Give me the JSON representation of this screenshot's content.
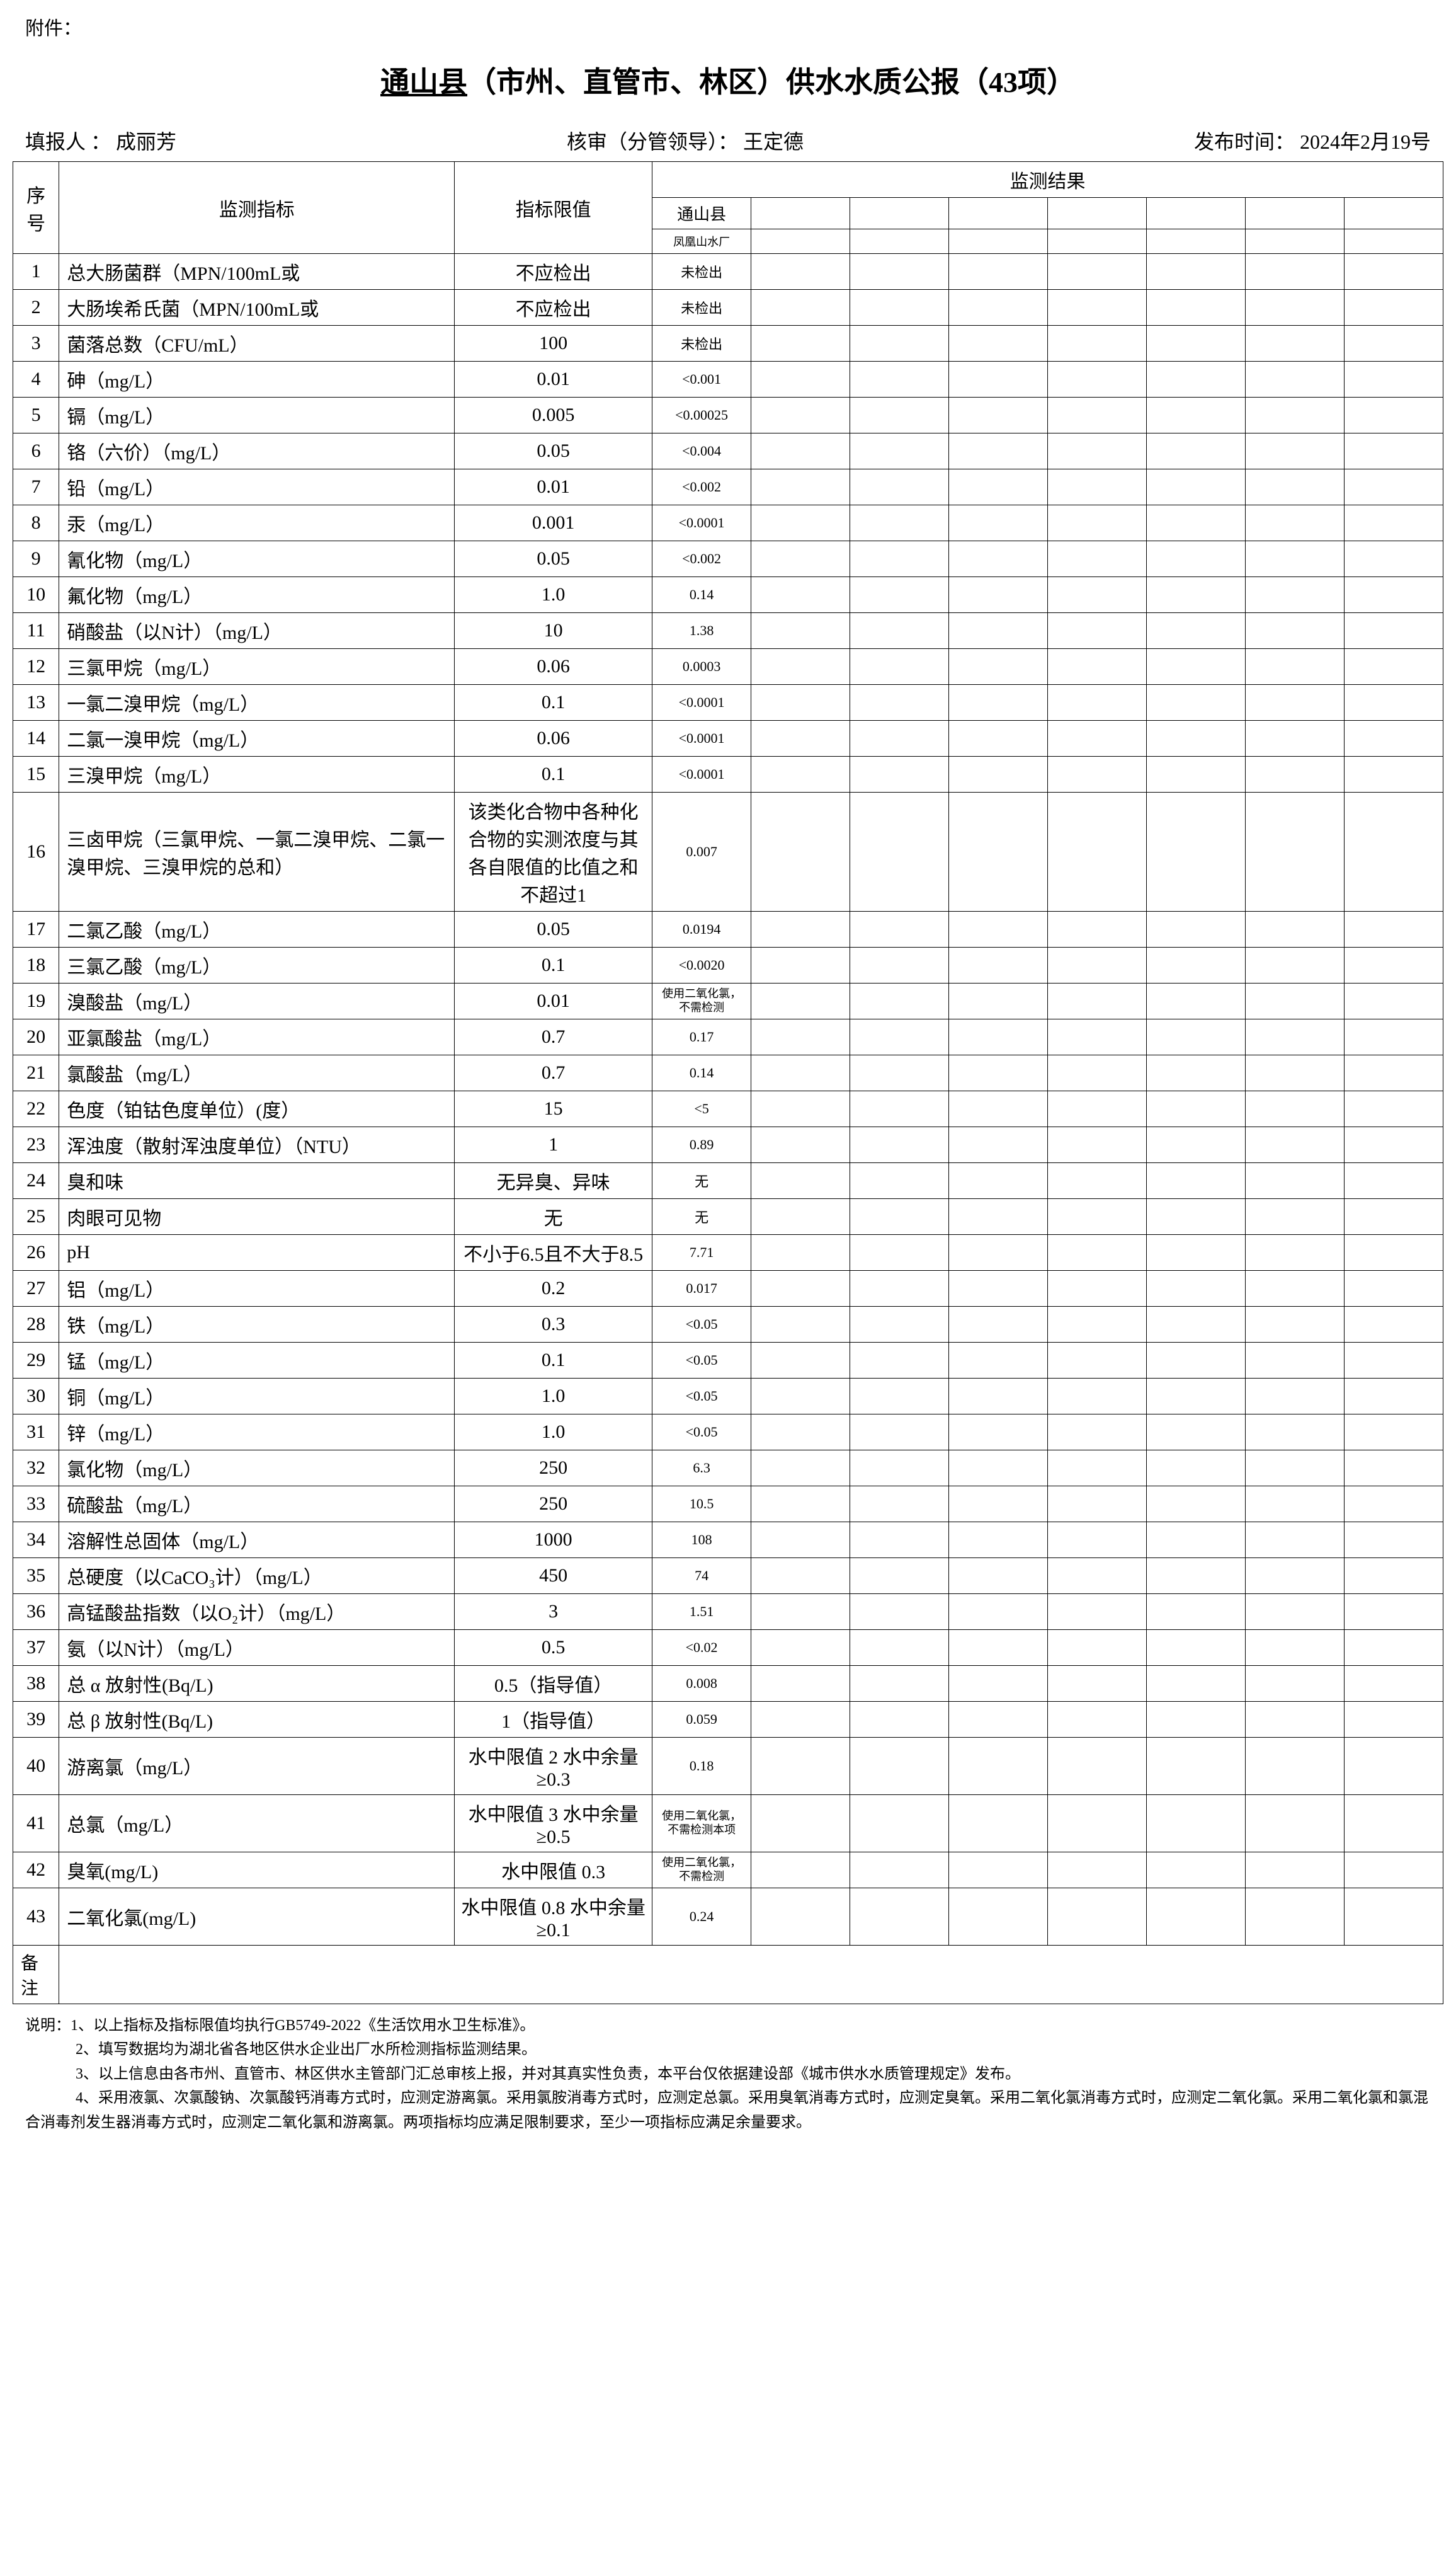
{
  "attachment": "附件：",
  "title": {
    "underlined": "通山县",
    "rest": "（市州、直管市、林区）供水水质公报（43项）"
  },
  "meta": {
    "reporter_label": "填报人 ：",
    "reporter": "成丽芳",
    "auditor_label": "核审（分管领导）：",
    "auditor": "王定德",
    "publish_label": "发布时间：",
    "publish": "2024年2月19号"
  },
  "headers": {
    "seq": "序号",
    "indicator": "监测指标",
    "limit": "指标限值",
    "result": "监测结果",
    "location": "通山县",
    "factory": "凤凰山水厂"
  },
  "rows": [
    {
      "seq": "1",
      "indicator": "总大肠菌群（MPN/100mL或",
      "limit": "不应检出",
      "result": "未检出"
    },
    {
      "seq": "2",
      "indicator": "大肠埃希氏菌（MPN/100mL或",
      "limit": "不应检出",
      "result": "未检出"
    },
    {
      "seq": "3",
      "indicator": "菌落总数（CFU/mL）",
      "limit": "100",
      "result": "未检出"
    },
    {
      "seq": "4",
      "indicator": "砷（mg/L）",
      "limit": "0.01",
      "result": "<0.001"
    },
    {
      "seq": "5",
      "indicator": "镉（mg/L）",
      "limit": "0.005",
      "result": "<0.00025"
    },
    {
      "seq": "6",
      "indicator": "铬（六价）（mg/L）",
      "limit": "0.05",
      "result": "<0.004"
    },
    {
      "seq": "7",
      "indicator": "铅（mg/L）",
      "limit": "0.01",
      "result": "<0.002"
    },
    {
      "seq": "8",
      "indicator": "汞（mg/L）",
      "limit": "0.001",
      "result": "<0.0001"
    },
    {
      "seq": "9",
      "indicator": "氰化物（mg/L）",
      "limit": "0.05",
      "result": "<0.002"
    },
    {
      "seq": "10",
      "indicator": "氟化物（mg/L）",
      "limit": "1.0",
      "result": "0.14"
    },
    {
      "seq": "11",
      "indicator": "硝酸盐（以N计）（mg/L）",
      "limit": "10",
      "result": "1.38"
    },
    {
      "seq": "12",
      "indicator": "三氯甲烷（mg/L）",
      "limit": "0.06",
      "result": "0.0003"
    },
    {
      "seq": "13",
      "indicator": "一氯二溴甲烷（mg/L）",
      "limit": "0.1",
      "result": "<0.0001"
    },
    {
      "seq": "14",
      "indicator": "二氯一溴甲烷（mg/L）",
      "limit": "0.06",
      "result": "<0.0001"
    },
    {
      "seq": "15",
      "indicator": "三溴甲烷（mg/L）",
      "limit": "0.1",
      "result": "<0.0001"
    },
    {
      "seq": "16",
      "indicator": "三卤甲烷（三氯甲烷、一氯二溴甲烷、二氯一溴甲烷、三溴甲烷的总和）",
      "limit": "该类化合物中各种化合物的实测浓度与其各自限值的比值之和不超过1",
      "result": "0.007"
    },
    {
      "seq": "17",
      "indicator": "二氯乙酸（mg/L）",
      "limit": "0.05",
      "result": "0.0194"
    },
    {
      "seq": "18",
      "indicator": "三氯乙酸（mg/L）",
      "limit": "0.1",
      "result": "<0.0020"
    },
    {
      "seq": "19",
      "indicator": "溴酸盐（mg/L）",
      "limit": "0.01",
      "result": "使用二氧化氯，不需检测",
      "small": true
    },
    {
      "seq": "20",
      "indicator": "亚氯酸盐（mg/L）",
      "limit": "0.7",
      "result": "0.17"
    },
    {
      "seq": "21",
      "indicator": "氯酸盐（mg/L）",
      "limit": "0.7",
      "result": "0.14"
    },
    {
      "seq": "22",
      "indicator": "色度（铂钴色度单位）(度）",
      "limit": "15",
      "result": "<5"
    },
    {
      "seq": "23",
      "indicator": "浑浊度（散射浑浊度单位）（NTU）",
      "limit": "1",
      "result": "0.89"
    },
    {
      "seq": "24",
      "indicator": "臭和味",
      "limit": "无异臭、异味",
      "result": "无"
    },
    {
      "seq": "25",
      "indicator": "肉眼可见物",
      "limit": "无",
      "result": "无"
    },
    {
      "seq": "26",
      "indicator": "pH",
      "limit": "不小于6.5且不大于8.5",
      "result": "7.71"
    },
    {
      "seq": "27",
      "indicator": "铝（mg/L）",
      "limit": "0.2",
      "result": "0.017"
    },
    {
      "seq": "28",
      "indicator": "铁（mg/L）",
      "limit": "0.3",
      "result": "<0.05"
    },
    {
      "seq": "29",
      "indicator": "锰（mg/L）",
      "limit": "0.1",
      "result": "<0.05"
    },
    {
      "seq": "30",
      "indicator": "铜（mg/L）",
      "limit": "1.0",
      "result": "<0.05"
    },
    {
      "seq": "31",
      "indicator": "锌（mg/L）",
      "limit": "1.0",
      "result": "<0.05"
    },
    {
      "seq": "32",
      "indicator": "氯化物（mg/L）",
      "limit": "250",
      "result": "6.3"
    },
    {
      "seq": "33",
      "indicator": "硫酸盐（mg/L）",
      "limit": "250",
      "result": "10.5"
    },
    {
      "seq": "34",
      "indicator": "溶解性总固体（mg/L）",
      "limit": "1000",
      "result": "108"
    },
    {
      "seq": "35",
      "indicator": "总硬度（以CaCO₃计）（mg/L）",
      "limit": "450",
      "result": "74"
    },
    {
      "seq": "36",
      "indicator": "高锰酸盐指数（以O₂计）（mg/L）",
      "limit": "3",
      "result": "1.51"
    },
    {
      "seq": "37",
      "indicator": "氨（以N计）（mg/L）",
      "limit": "0.5",
      "result": "<0.02"
    },
    {
      "seq": "38",
      "indicator": "总 α 放射性(Bq/L)",
      "limit": "0.5（指导值）",
      "result": "0.008"
    },
    {
      "seq": "39",
      "indicator": "总 β 放射性(Bq/L)",
      "limit": "1（指导值）",
      "result": "0.059"
    },
    {
      "seq": "40",
      "indicator": "游离氯（mg/L）",
      "limit": "水中限值 2 水中余量≥0.3",
      "result": "0.18"
    },
    {
      "seq": "41",
      "indicator": "总氯（mg/L）",
      "limit": "水中限值 3 水中余量≥0.5",
      "result": "使用二氧化氯，不需检测本项",
      "small": true
    },
    {
      "seq": "42",
      "indicator": "臭氧(mg/L)",
      "limit": "水中限值 0.3",
      "result": "使用二氧化氯，不需检测",
      "small": true
    },
    {
      "seq": "43",
      "indicator": "二氧化氯(mg/L)",
      "limit": "水中限值 0.8 水中余量≥0.1",
      "result": "0.24"
    }
  ],
  "remark_label": "备注",
  "notes_label": "说明：",
  "notes": [
    "1、以上指标及指标限值均执行GB5749-2022《生活饮用水卫生标准》。",
    "2、填写数据均为湖北省各地区供水企业出厂水所检测指标监测结果。",
    "3、以上信息由各市州、直管市、林区供水主管部门汇总审核上报，并对其真实性负责，本平台仅依据建设部《城市供水水质管理规定》发布。",
    "4、采用液氯、次氯酸钠、次氯酸钙消毒方式时，应测定游离氯。采用氯胺消毒方式时，应测定总氯。采用臭氧消毒方式时，应测定臭氧。采用二氧化氯消毒方式时，应测定二氧化氯。采用二氧化氯和氯混合消毒剂发生器消毒方式时，应测定二氧化氯和游离氯。两项指标均应满足限制要求，至少一项指标应满足余量要求。"
  ]
}
